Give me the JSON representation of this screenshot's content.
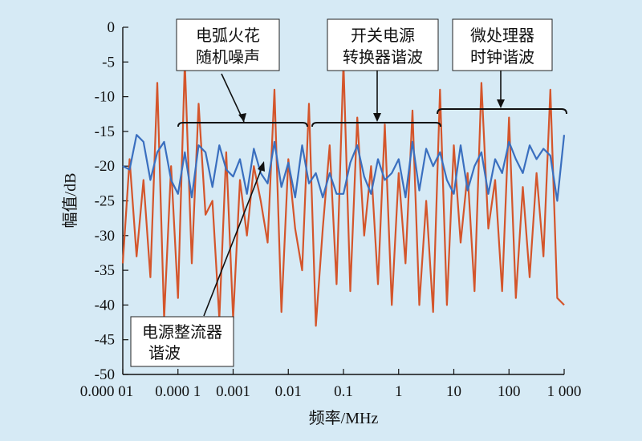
{
  "chart_data": {
    "type": "line",
    "xscale": "log",
    "xlim": [
      1e-05,
      1000
    ],
    "ylim": [
      -50,
      0
    ],
    "grid": false,
    "xlabel": "频率/MHz",
    "ylabel": "幅值/dB",
    "xtick_labels": [
      "0.000 01",
      "0.000 1",
      "0.001",
      "0.01",
      "0.1",
      "1",
      "10",
      "100",
      "1 000"
    ],
    "xtick_values": [
      1e-05,
      0.0001,
      0.001,
      0.01,
      0.1,
      1,
      10,
      100,
      1000
    ],
    "ytick_labels": [
      "0",
      "-5",
      "-10",
      "-15",
      "-20",
      "-25",
      "-30",
      "-35",
      "-40",
      "-45",
      "-50"
    ],
    "ytick_values": [
      0,
      -5,
      -10,
      -15,
      -20,
      -25,
      -30,
      -35,
      -40,
      -45,
      -50
    ],
    "series": [
      {
        "color": "#d4552b",
        "x": [
          1e-05,
          1.33e-05,
          1.78e-05,
          2.37e-05,
          3.16e-05,
          4.22e-05,
          5.62e-05,
          7.5e-05,
          0.0001,
          0.000133,
          0.000178,
          0.000237,
          0.000316,
          0.000422,
          0.000562,
          0.00075,
          0.001,
          0.00133,
          0.00178,
          0.00237,
          0.00316,
          0.00422,
          0.00562,
          0.0075,
          0.01,
          0.0133,
          0.0178,
          0.0237,
          0.0316,
          0.0422,
          0.0562,
          0.075,
          0.1,
          0.133,
          0.178,
          0.237,
          0.316,
          0.422,
          0.562,
          0.75,
          1,
          1.33,
          1.78,
          2.37,
          3.16,
          4.22,
          5.62,
          7.5,
          10,
          13.3,
          17.8,
          23.7,
          31.6,
          42.2,
          56.2,
          75,
          100,
          133,
          178,
          237,
          316,
          422,
          562,
          750,
          1000
        ],
        "y": [
          -34,
          -19,
          -33,
          -22,
          -36,
          -8,
          -42,
          -20,
          -39,
          -5,
          -34,
          -11,
          -27,
          -25,
          -42,
          -18,
          -42,
          -22,
          -30,
          -20,
          -25,
          -31,
          -9,
          -41,
          -19,
          -29,
          -35,
          -11,
          -43,
          -29,
          -17,
          -37,
          -5,
          -38,
          -13,
          -30,
          -20,
          -37,
          -14,
          -40,
          -21,
          -34,
          -12,
          -40,
          -25,
          -41,
          -9,
          -40,
          -17,
          -31,
          -21,
          -38,
          -8,
          -29,
          -22,
          -38,
          -13,
          -39,
          -23,
          -36,
          -21,
          -33,
          -9,
          -39,
          -40
        ]
      },
      {
        "color": "#3a6fbf",
        "x": [
          1e-05,
          1.33e-05,
          1.78e-05,
          2.37e-05,
          3.16e-05,
          4.22e-05,
          5.62e-05,
          7.5e-05,
          0.0001,
          0.000133,
          0.000178,
          0.000237,
          0.000316,
          0.000422,
          0.000562,
          0.00075,
          0.001,
          0.00133,
          0.00178,
          0.00237,
          0.00316,
          0.00422,
          0.00562,
          0.0075,
          0.01,
          0.0133,
          0.0178,
          0.0237,
          0.0316,
          0.0422,
          0.0562,
          0.075,
          0.1,
          0.133,
          0.178,
          0.237,
          0.316,
          0.422,
          0.562,
          0.75,
          1,
          1.33,
          1.78,
          2.37,
          3.16,
          4.22,
          5.62,
          7.5,
          10,
          13.3,
          17.8,
          23.7,
          31.6,
          42.2,
          56.2,
          75,
          100,
          133,
          178,
          237,
          316,
          422,
          562,
          750,
          1000
        ],
        "y": [
          -20,
          -20.5,
          -15.5,
          -16.5,
          -22,
          -18,
          -16.5,
          -22,
          -24,
          -18,
          -24.5,
          -17,
          -18,
          -23,
          -17,
          -20.5,
          -21.5,
          -19,
          -24,
          -17.5,
          -21,
          -22.5,
          -16.5,
          -23,
          -19.5,
          -24.5,
          -17,
          -22.5,
          -21,
          -24.5,
          -21,
          -24,
          -24,
          -19.5,
          -17,
          -21.5,
          -24,
          -19,
          -22,
          -21,
          -19,
          -24.5,
          -16.5,
          -23.5,
          -17.5,
          -20,
          -18,
          -22,
          -24,
          -17,
          -23.5,
          -20,
          -18,
          -24,
          -19,
          -21,
          -16.5,
          -19,
          -21,
          -17,
          -19,
          -17.5,
          -18.5,
          -25,
          -15.5
        ]
      }
    ],
    "annotations": [
      {
        "lines": [
          "电弧火花",
          "随机噪声"
        ]
      },
      {
        "lines": [
          "开关电源",
          "转换器谐波"
        ]
      },
      {
        "lines": [
          "微处理器",
          "时钟谐波"
        ]
      },
      {
        "lines": [
          "电源整流器",
          "谐波"
        ]
      }
    ]
  }
}
